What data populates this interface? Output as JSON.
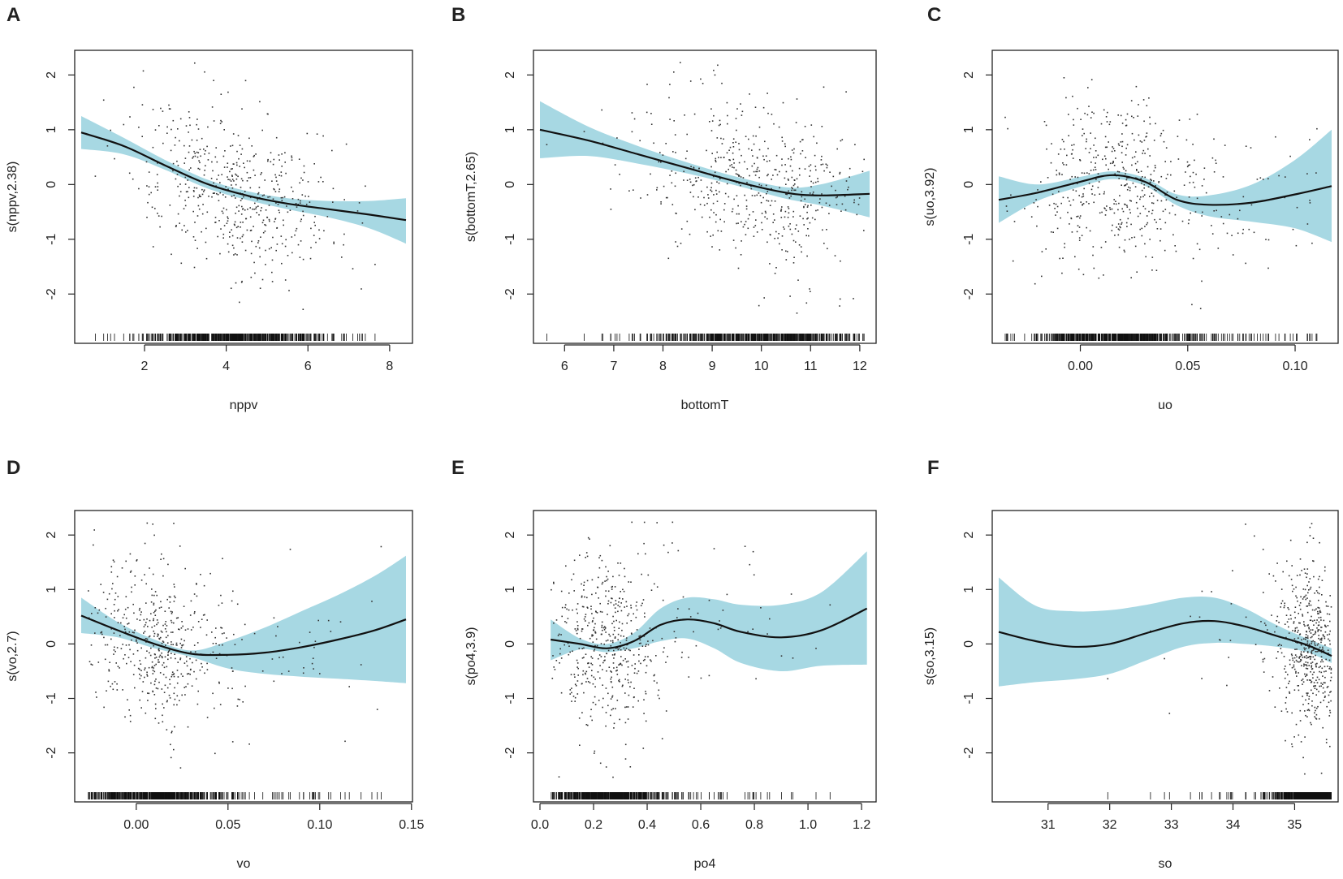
{
  "figure": {
    "description_colors": {
      "band": "#a7d8e3",
      "line": "#111111",
      "points": "#333333",
      "axis": "#222222"
    }
  },
  "chart_data": [
    {
      "panel_label": "A",
      "type": "line",
      "title": "",
      "xlabel": "nppv",
      "ylabel": "s(nppv,2.38)",
      "xlim": [
        0.45,
        8.4
      ],
      "ylim": [
        -2.9,
        2.45
      ],
      "xticks": [
        2,
        4,
        6,
        8
      ],
      "xtick_labels": [
        "2",
        "4",
        "6",
        "8"
      ],
      "yticks": [
        -2,
        -1,
        0,
        1,
        2
      ],
      "ytick_labels": [
        "-2",
        "-1",
        "0",
        "1",
        "2"
      ],
      "fit": {
        "x": [
          0.45,
          1.5,
          2.5,
          3.5,
          4.5,
          5.5,
          6.5,
          7.5,
          8.4
        ],
        "y": [
          0.95,
          0.7,
          0.35,
          0.02,
          -0.2,
          -0.35,
          -0.45,
          -0.55,
          -0.65
        ]
      },
      "band_upper": [
        1.25,
        0.85,
        0.45,
        0.1,
        -0.12,
        -0.25,
        -0.3,
        -0.3,
        -0.25
      ],
      "band_lower": [
        0.65,
        0.55,
        0.27,
        -0.06,
        -0.28,
        -0.45,
        -0.6,
        -0.8,
        -1.08
      ],
      "points": {
        "center": 4.3,
        "spread": 1.3,
        "min": 0.6,
        "max": 8.0,
        "skew": 0,
        "n": 520,
        "yslope": -0.22,
        "noise": 0.72,
        "seed": 11
      }
    },
    {
      "panel_label": "B",
      "type": "line",
      "title": "",
      "xlabel": "bottomT",
      "ylabel": "s(bottomT,2.65)",
      "xlim": [
        5.5,
        12.2
      ],
      "ylim": [
        -2.9,
        2.45
      ],
      "xticks": [
        6,
        7,
        8,
        9,
        10,
        11,
        12
      ],
      "xtick_labels": [
        "6",
        "7",
        "8",
        "9",
        "10",
        "11",
        "12"
      ],
      "yticks": [
        -2,
        -1,
        0,
        1,
        2
      ],
      "ytick_labels": [
        "-2",
        "-1",
        "0",
        "1",
        "2"
      ],
      "fit": {
        "x": [
          5.5,
          6.5,
          7.5,
          8.5,
          9.5,
          10.5,
          11.2,
          12.2
        ],
        "y": [
          1.0,
          0.8,
          0.55,
          0.3,
          0.05,
          -0.15,
          -0.2,
          -0.17
        ]
      },
      "band_upper": [
        1.52,
        1.05,
        0.7,
        0.4,
        0.14,
        -0.05,
        0.0,
        0.25
      ],
      "band_lower": [
        0.48,
        0.52,
        0.38,
        0.2,
        -0.02,
        -0.26,
        -0.38,
        -0.6
      ],
      "points": {
        "center": 10.0,
        "spread": 1.2,
        "min": 5.6,
        "max": 12.1,
        "skew": 0,
        "n": 520,
        "yslope": -0.25,
        "noise": 0.75,
        "seed": 23
      }
    },
    {
      "panel_label": "C",
      "type": "line",
      "title": "",
      "xlabel": "uo",
      "ylabel": "s(uo,3.92)",
      "xlim": [
        -0.038,
        0.117
      ],
      "ylim": [
        -2.9,
        2.45
      ],
      "xticks": [
        0.0,
        0.05,
        0.1
      ],
      "xtick_labels": [
        "0.00",
        "0.05",
        "0.10"
      ],
      "yticks": [
        -2,
        -1,
        0,
        1,
        2
      ],
      "ytick_labels": [
        "-2",
        "-1",
        "0",
        "1",
        "2"
      ],
      "fit": {
        "x": [
          -0.038,
          -0.02,
          0.0,
          0.015,
          0.03,
          0.045,
          0.06,
          0.08,
          0.1,
          0.117
        ],
        "y": [
          -0.28,
          -0.15,
          0.05,
          0.17,
          0.05,
          -0.28,
          -0.37,
          -0.33,
          -0.18,
          -0.03
        ]
      },
      "band_upper": [
        0.15,
        0.0,
        0.14,
        0.24,
        0.12,
        -0.18,
        -0.2,
        0.0,
        0.45,
        1.0
      ],
      "band_lower": [
        -0.7,
        -0.3,
        -0.04,
        0.1,
        -0.02,
        -0.38,
        -0.58,
        -0.68,
        -0.8,
        -1.05
      ],
      "points": {
        "center": 0.015,
        "spread": 0.02,
        "min": -0.035,
        "max": 0.112,
        "skew": 0.3,
        "n": 520,
        "yslope": 0,
        "noise": 0.75,
        "seed": 37
      }
    },
    {
      "panel_label": "D",
      "type": "line",
      "title": "",
      "xlabel": "vo",
      "ylabel": "s(vo,2.7)",
      "xlim": [
        -0.03,
        0.147
      ],
      "ylim": [
        -2.9,
        2.45
      ],
      "xticks": [
        0.0,
        0.05,
        0.1,
        0.15
      ],
      "xtick_labels": [
        "0.00",
        "0.05",
        "0.10",
        "0.15"
      ],
      "yticks": [
        -2,
        -1,
        0,
        1,
        2
      ],
      "ytick_labels": [
        "-2",
        "-1",
        "0",
        "1",
        "2"
      ],
      "fit": {
        "x": [
          -0.03,
          -0.01,
          0.01,
          0.03,
          0.05,
          0.07,
          0.09,
          0.11,
          0.13,
          0.147
        ],
        "y": [
          0.52,
          0.25,
          0.0,
          -0.18,
          -0.2,
          -0.16,
          -0.06,
          0.08,
          0.25,
          0.45
        ]
      },
      "band_upper": [
        0.85,
        0.4,
        0.08,
        -0.12,
        0.05,
        0.3,
        0.6,
        0.9,
        1.25,
        1.62
      ],
      "band_lower": [
        0.2,
        0.12,
        -0.08,
        -0.24,
        -0.45,
        -0.55,
        -0.6,
        -0.64,
        -0.68,
        -0.72
      ],
      "points": {
        "center": 0.005,
        "spread": 0.017,
        "min": -0.028,
        "max": 0.145,
        "skew": 0.3,
        "n": 520,
        "yslope": -0.1,
        "noise": 0.75,
        "seed": 51
      }
    },
    {
      "panel_label": "E",
      "type": "line",
      "title": "",
      "xlabel": "po4",
      "ylabel": "s(po4,3.9)",
      "xlim": [
        0.0,
        1.23
      ],
      "ylim": [
        -2.9,
        2.45
      ],
      "xticks": [
        0.0,
        0.2,
        0.4,
        0.6,
        0.8,
        1.0,
        1.2
      ],
      "xtick_labels": [
        "0.0",
        "0.2",
        "0.4",
        "0.6",
        "0.8",
        "1.0",
        "1.2"
      ],
      "yticks": [
        -2,
        -1,
        0,
        1,
        2
      ],
      "ytick_labels": [
        "-2",
        "-1",
        "0",
        "1",
        "2"
      ],
      "fit": {
        "x": [
          0.04,
          0.15,
          0.25,
          0.35,
          0.45,
          0.55,
          0.65,
          0.75,
          0.9,
          1.05,
          1.22
        ],
        "y": [
          0.08,
          0.0,
          -0.08,
          0.05,
          0.35,
          0.45,
          0.38,
          0.22,
          0.12,
          0.25,
          0.65
        ]
      },
      "band_upper": [
        0.45,
        0.1,
        0.0,
        0.2,
        0.65,
        0.85,
        0.82,
        0.72,
        0.72,
        0.95,
        1.7
      ],
      "band_lower": [
        -0.3,
        -0.1,
        -0.15,
        -0.08,
        0.05,
        0.1,
        -0.08,
        -0.35,
        -0.5,
        -0.4,
        -0.38
      ],
      "points": {
        "center": 0.23,
        "spread": 0.1,
        "min": 0.04,
        "max": 1.22,
        "skew": 0.12,
        "n": 520,
        "yslope": 0,
        "noise": 0.8,
        "seed": 67
      }
    },
    {
      "panel_label": "F",
      "type": "line",
      "title": "",
      "xlabel": "so",
      "ylabel": "s(so,3.15)",
      "xlim": [
        30.2,
        35.6
      ],
      "ylim": [
        -2.9,
        2.45
      ],
      "xticks": [
        31,
        32,
        33,
        34,
        35
      ],
      "xtick_labels": [
        "31",
        "32",
        "33",
        "34",
        "35"
      ],
      "yticks": [
        -2,
        -1,
        0,
        1,
        2
      ],
      "ytick_labels": [
        "-2",
        "-1",
        "0",
        "1",
        "2"
      ],
      "fit": {
        "x": [
          30.2,
          30.8,
          31.4,
          32.0,
          32.6,
          33.2,
          33.7,
          34.2,
          34.7,
          35.2,
          35.6
        ],
        "y": [
          0.22,
          0.05,
          -0.05,
          0.0,
          0.2,
          0.38,
          0.42,
          0.32,
          0.15,
          -0.02,
          -0.22
        ]
      },
      "band_upper": [
        1.22,
        0.7,
        0.6,
        0.62,
        0.72,
        0.85,
        0.85,
        0.65,
        0.35,
        0.1,
        -0.08
      ],
      "band_lower": [
        -0.78,
        -0.7,
        -0.65,
        -0.55,
        -0.3,
        -0.05,
        0.02,
        0.0,
        -0.05,
        -0.15,
        -0.35
      ],
      "points": {
        "center": 35.3,
        "spread": 0.28,
        "min": 30.3,
        "max": 35.6,
        "skew": 0.1,
        "n": 520,
        "yslope": 0,
        "noise": 0.75,
        "seed": 83
      }
    }
  ]
}
